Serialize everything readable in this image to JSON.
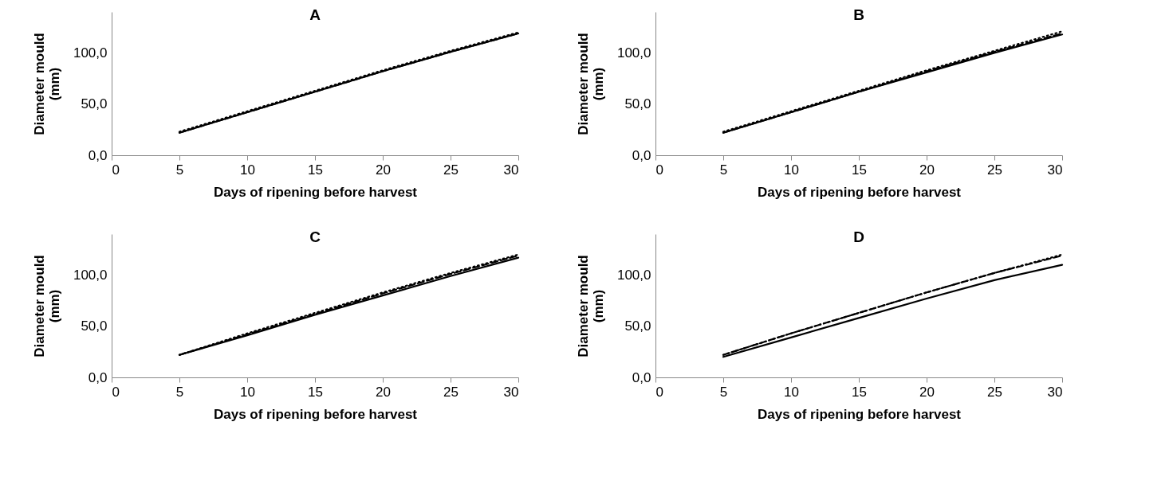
{
  "chart_data": [
    {
      "type": "line",
      "title": "A",
      "xlabel": "Days of ripening before harvest",
      "ylabel": "Diameter mould (mm)",
      "x": [
        5,
        10,
        15,
        20,
        25,
        30
      ],
      "xlim": [
        0,
        30
      ],
      "xticks": [
        0,
        5,
        10,
        15,
        20,
        25,
        30
      ],
      "ylim": [
        0,
        140
      ],
      "yticks": [
        {
          "value": 0,
          "label": "0,0"
        },
        {
          "value": 50,
          "label": "50,0"
        },
        {
          "value": 100,
          "label": "100,0"
        }
      ],
      "grid": false,
      "marker": "none",
      "series": [
        {
          "color": "#000000",
          "line_style": "solid",
          "values": [
            22,
            42,
            62,
            82,
            101,
            119
          ]
        },
        {
          "color": "#000000",
          "line_style": "dashed",
          "values": [
            22,
            42,
            62,
            82,
            101,
            119
          ]
        },
        {
          "color": "#000000",
          "line_style": "dotted",
          "values": [
            23,
            43,
            63,
            83,
            102,
            120
          ]
        }
      ]
    },
    {
      "type": "line",
      "title": "B",
      "xlabel": "Days of ripening before harvest",
      "ylabel": "Diameter mould (mm)",
      "x": [
        5,
        10,
        15,
        20,
        25,
        30
      ],
      "xlim": [
        0,
        30
      ],
      "xticks": [
        0,
        5,
        10,
        15,
        20,
        25,
        30
      ],
      "ylim": [
        0,
        140
      ],
      "yticks": [
        {
          "value": 0,
          "label": "0,0"
        },
        {
          "value": 50,
          "label": "50,0"
        },
        {
          "value": 100,
          "label": "100,0"
        }
      ],
      "grid": false,
      "marker": "none",
      "series": [
        {
          "color": "#000000",
          "line_style": "solid",
          "values": [
            22,
            42,
            62,
            81,
            100,
            118
          ]
        },
        {
          "color": "#000000",
          "line_style": "dashed",
          "values": [
            22,
            42,
            62,
            82,
            101,
            119
          ]
        },
        {
          "color": "#000000",
          "line_style": "dotted",
          "values": [
            23,
            43,
            63,
            83,
            102,
            121
          ]
        }
      ]
    },
    {
      "type": "line",
      "title": "C",
      "xlabel": "Days of ripening before harvest",
      "ylabel": "Diameter mould (mm)",
      "x": [
        5,
        10,
        15,
        20,
        25,
        30
      ],
      "xlim": [
        0,
        30
      ],
      "xticks": [
        0,
        5,
        10,
        15,
        20,
        25,
        30
      ],
      "ylim": [
        0,
        140
      ],
      "yticks": [
        {
          "value": 0,
          "label": "0,0"
        },
        {
          "value": 50,
          "label": "50,0"
        },
        {
          "value": 100,
          "label": "100,0"
        }
      ],
      "grid": false,
      "marker": "none",
      "series": [
        {
          "color": "#000000",
          "line_style": "solid",
          "values": [
            22,
            41,
            61,
            80,
            99,
            117
          ]
        },
        {
          "color": "#000000",
          "line_style": "dashed",
          "values": [
            22,
            42,
            62,
            82,
            101,
            119
          ]
        },
        {
          "color": "#000000",
          "line_style": "dotted",
          "values": [
            22,
            43,
            63,
            83,
            102,
            120
          ]
        }
      ]
    },
    {
      "type": "line",
      "title": "D",
      "xlabel": "Days of ripening before harvest",
      "ylabel": "Diameter mould (mm)",
      "x": [
        5,
        10,
        15,
        20,
        25,
        30
      ],
      "xlim": [
        0,
        30
      ],
      "xticks": [
        0,
        5,
        10,
        15,
        20,
        25,
        30
      ],
      "ylim": [
        0,
        140
      ],
      "yticks": [
        {
          "value": 0,
          "label": "0,0"
        },
        {
          "value": 50,
          "label": "50,0"
        },
        {
          "value": 100,
          "label": "100,0"
        }
      ],
      "grid": false,
      "marker": "none",
      "series": [
        {
          "color": "#000000",
          "line_style": "solid",
          "values": [
            20,
            39,
            58,
            77,
            95,
            110
          ]
        },
        {
          "color": "#000000",
          "line_style": "dashed",
          "values": [
            22,
            43,
            63,
            83,
            102,
            119
          ]
        },
        {
          "color": "#000000",
          "line_style": "dotted",
          "values": [
            22,
            43,
            63,
            83,
            102,
            120
          ]
        }
      ]
    }
  ]
}
